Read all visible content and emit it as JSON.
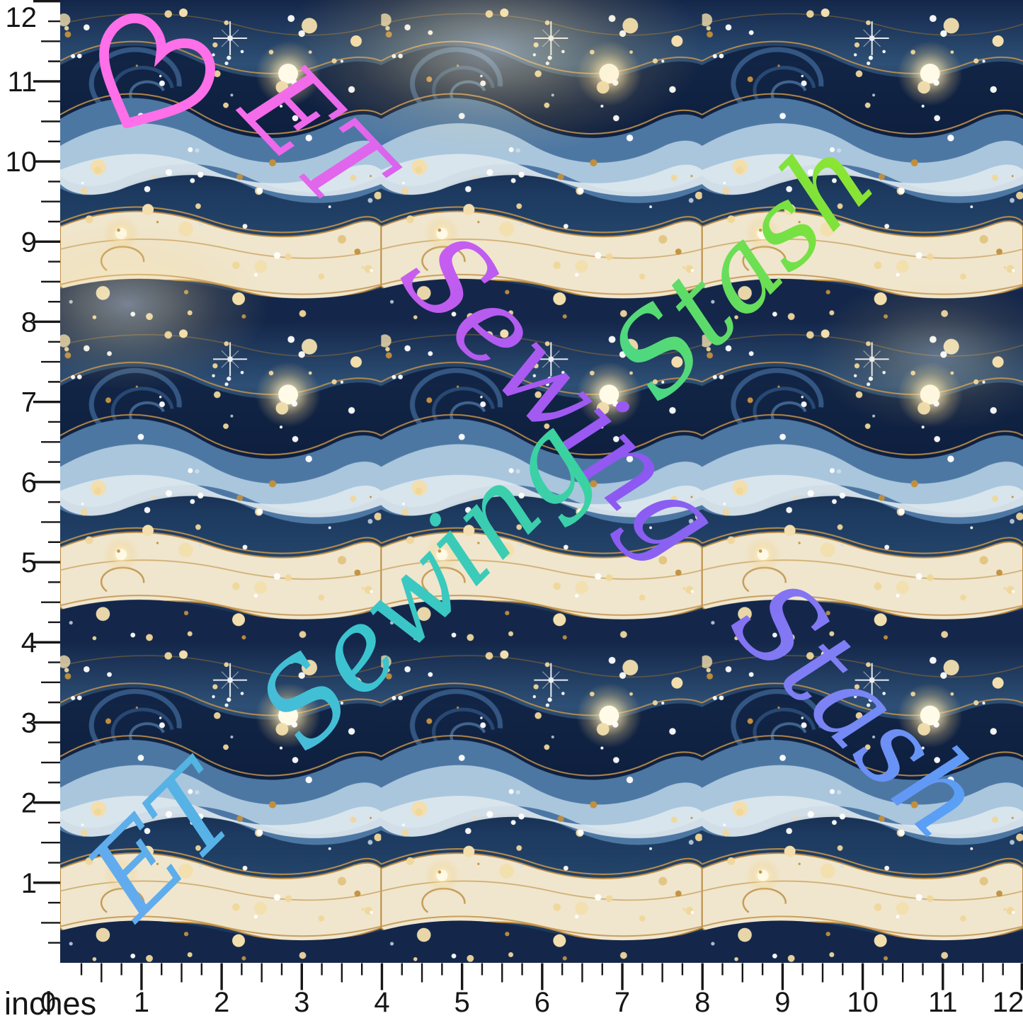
{
  "ruler": {
    "unit_label": "inches",
    "side_length_inches": 12,
    "bottom_numbers": [
      "0",
      "1",
      "2",
      "3",
      "4",
      "5",
      "6",
      "7",
      "8",
      "9",
      "10",
      "11",
      "12"
    ],
    "left_numbers": [
      "1",
      "2",
      "3",
      "4",
      "5",
      "6",
      "7",
      "8",
      "9",
      "10",
      "11",
      "12"
    ],
    "tick_color": "#161616"
  },
  "watermarks": [
    {
      "text": "ET Sewing Stash",
      "heart_icon": true,
      "orientation": "diagonal-top-left-to-bottom-right",
      "gradient": [
        "#ff6fe9",
        "#c55df0",
        "#8d58f2",
        "#7e82f4",
        "#3fb5f8"
      ]
    },
    {
      "text": "ET Sewing Stash",
      "heart_icon": false,
      "orientation": "diagonal-bottom-left-to-top-right",
      "gradient": [
        "#67a8f2",
        "#3ac4cf",
        "#3bd49c",
        "#7ce23c",
        "#bbee16"
      ]
    }
  ],
  "fabric_palette": {
    "navy_dark": "#0e1f3e",
    "navy": "#14274a",
    "blue_mid": "#2e5076",
    "steel_blue": "#4d77a3",
    "light_blue": "#a9c6dd",
    "ice": "#dde8ee",
    "cream": "#f0e6cd",
    "tan": "#c9a35f",
    "gold_line": "#b9893f",
    "dot_white": "#ffffff",
    "dot_gold": "#f0d79b",
    "glow": "#fff8e2",
    "ruler_area_bg": "#ffffff"
  }
}
